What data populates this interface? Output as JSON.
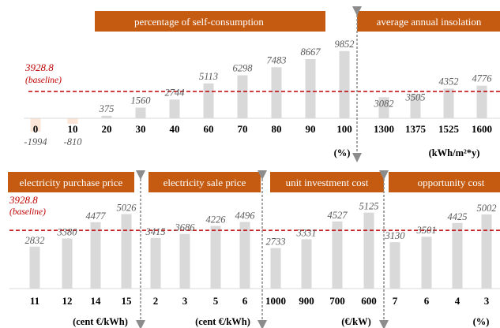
{
  "colors": {
    "bar": "#d9d9d9",
    "bar_negative": "#fbe5d6",
    "header_bg": "#c55a11",
    "baseline": "#c00000",
    "arrow": "#8c8c8c"
  },
  "baseline": {
    "value": 3928.8,
    "value_label": "3928.8",
    "label": "(baseline)"
  },
  "chart_data": [
    {
      "type": "bar",
      "title": "percentage of self-consumption",
      "unit": "(%)",
      "categories": [
        "0",
        "10",
        "20",
        "30",
        "40",
        "60",
        "70",
        "80",
        "90",
        "100"
      ],
      "values": [
        -1994,
        -810,
        375,
        1560,
        2744,
        5113,
        6298,
        7483,
        8667,
        9852
      ],
      "value_labels": [
        "-1994",
        "-810",
        "375",
        "1560",
        "2744",
        "5113",
        "6298",
        "7483",
        "8667",
        "9852"
      ],
      "baseline": 3928.8
    },
    {
      "type": "bar",
      "title": "average annual insolation",
      "unit": "(kWh/m²*y)",
      "categories": [
        "1300",
        "1375",
        "1525",
        "1600"
      ],
      "values": [
        3082,
        3505,
        4352,
        4776
      ],
      "value_labels": [
        "3082",
        "3505",
        "4352",
        "4776"
      ],
      "baseline": 3928.8
    },
    {
      "type": "bar",
      "title": "electricity purchase price",
      "unit": "(cent €/kWh)",
      "categories": [
        "11",
        "12",
        "14",
        "15"
      ],
      "values": [
        2832,
        3380,
        4477,
        5026
      ],
      "value_labels": [
        "2832",
        "3380",
        "4477",
        "5026"
      ],
      "baseline": 3928.8
    },
    {
      "type": "bar",
      "title": "electricity sale price",
      "unit": "(cent €/kWh)",
      "categories": [
        "2",
        "3",
        "5",
        "6"
      ],
      "values": [
        3415,
        3686,
        4226,
        4496
      ],
      "value_labels": [
        "3415",
        "3686",
        "4226",
        "4496"
      ],
      "baseline": 3928.8
    },
    {
      "type": "bar",
      "title": "unit investment cost",
      "unit": "(€/kW)",
      "categories": [
        "1000",
        "900",
        "700",
        "600"
      ],
      "values": [
        2733,
        3331,
        4527,
        5125
      ],
      "value_labels": [
        "2733",
        "3331",
        "4527",
        "5125"
      ],
      "baseline": 3928.8
    },
    {
      "type": "bar",
      "title": "opportunity cost",
      "unit": "(%)",
      "categories": [
        "7",
        "6",
        "4",
        "3"
      ],
      "values": [
        3130,
        3501,
        4425,
        5002
      ],
      "value_labels": [
        "3130",
        "3501",
        "4425",
        "5002"
      ],
      "baseline": 3928.8
    }
  ]
}
